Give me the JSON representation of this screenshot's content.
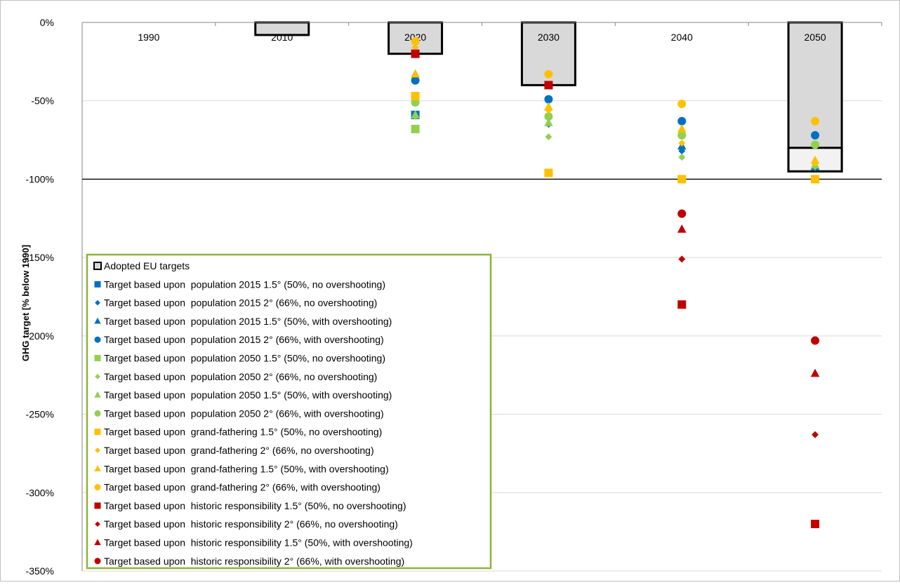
{
  "chart_data": {
    "type": "scatter",
    "ylabel": "GHG target [% below 1990]",
    "y_ticks": [
      "0%",
      "-50%",
      "-100%",
      "-150%",
      "-200%",
      "-250%",
      "-300%",
      "-350%"
    ],
    "ylim": [
      -350,
      0
    ],
    "categories": [
      "1990",
      "2010",
      "2020",
      "2030",
      "2040",
      "2050"
    ],
    "grid": true,
    "legend_position": "bottom-left",
    "adopted_eu_targets": {
      "name": "Adopted EU targets",
      "color": "#d9d9d9",
      "bars": [
        {
          "category": "2010",
          "value": -8
        },
        {
          "category": "2020",
          "value": -20
        },
        {
          "category": "2030",
          "value": -40
        },
        {
          "category": "2050",
          "value": -95,
          "inner_value": -80
        }
      ]
    },
    "series": [
      {
        "name": "Target based upon  population 2015 1.5° (50%, no overshooting)",
        "color": "#0070c0",
        "marker": "square",
        "points": [
          [
            "2020",
            -59
          ]
        ]
      },
      {
        "name": "Target based upon  population 2015 2° (66%, no overshooting)",
        "color": "#0070c0",
        "marker": "diamond",
        "points": [
          [
            "2020",
            -35
          ],
          [
            "2030",
            -65
          ],
          [
            "2040",
            -82
          ],
          [
            "2050",
            -93
          ]
        ]
      },
      {
        "name": "Target based upon  population 2015 1.5° (50%, with overshooting)",
        "color": "#0070c0",
        "marker": "triangle",
        "points": [
          [
            "2020",
            -33
          ],
          [
            "2030",
            -54
          ],
          [
            "2040",
            -79
          ],
          [
            "2050",
            -92
          ]
        ]
      },
      {
        "name": "Target based upon  population 2015 2° (66%, with overshooting)",
        "color": "#0070c0",
        "marker": "circle",
        "points": [
          [
            "2020",
            -37
          ],
          [
            "2030",
            -49
          ],
          [
            "2040",
            -63
          ],
          [
            "2050",
            -72
          ]
        ]
      },
      {
        "name": "Target based upon  population 2050 1.5° (50%, no overshooting)",
        "color": "#92d050",
        "marker": "square",
        "points": [
          [
            "2020",
            -68
          ]
        ]
      },
      {
        "name": "Target based upon  population 2050 2° (66%, no overshooting)",
        "color": "#92d050",
        "marker": "diamond",
        "points": [
          [
            "2020",
            -60
          ],
          [
            "2030",
            -73
          ],
          [
            "2040",
            -86
          ],
          [
            "2050",
            -92
          ]
        ]
      },
      {
        "name": "Target based upon  population 2050 1.5° (50%, with overshooting)",
        "color": "#92d050",
        "marker": "triangle",
        "points": [
          [
            "2020",
            -59
          ],
          [
            "2030",
            -64
          ],
          [
            "2040",
            -70
          ],
          [
            "2050",
            -91
          ]
        ]
      },
      {
        "name": "Target based upon  population 2050 2° (66%, with overshooting)",
        "color": "#92d050",
        "marker": "circle",
        "points": [
          [
            "2020",
            -51
          ],
          [
            "2030",
            -60
          ],
          [
            "2040",
            -72
          ],
          [
            "2050",
            -78
          ]
        ]
      },
      {
        "name": "Target based upon  grand-fathering 1.5° (50%, no overshooting)",
        "color": "#ffc000",
        "marker": "square",
        "points": [
          [
            "2020",
            -47
          ],
          [
            "2030",
            -96
          ],
          [
            "2040",
            -100
          ],
          [
            "2050",
            -100
          ]
        ]
      },
      {
        "name": "Target based upon  grand-fathering 2° (66%, no overshooting)",
        "color": "#ffc000",
        "marker": "diamond",
        "points": [
          [
            "2020",
            -16
          ],
          [
            "2030",
            -56
          ],
          [
            "2040",
            -77
          ],
          [
            "2050",
            -90
          ]
        ]
      },
      {
        "name": "Target based upon  grand-fathering 1.5° (50%, with overshooting)",
        "color": "#ffc000",
        "marker": "triangle",
        "points": [
          [
            "2020",
            -33
          ],
          [
            "2030",
            -54
          ],
          [
            "2040",
            -68
          ],
          [
            "2050",
            -88
          ]
        ]
      },
      {
        "name": "Target based upon  grand-fathering 2° (66%, with overshooting)",
        "color": "#ffc000",
        "marker": "circle",
        "points": [
          [
            "2020",
            -12
          ],
          [
            "2030",
            -33
          ],
          [
            "2040",
            -52
          ],
          [
            "2050",
            -63
          ]
        ]
      },
      {
        "name": "Target based upon  historic responsibility 1.5° (50%, no overshooting)",
        "color": "#c00000",
        "marker": "square",
        "points": [
          [
            "2020",
            -20
          ],
          [
            "2030",
            -40
          ],
          [
            "2040",
            -180
          ],
          [
            "2050",
            -320
          ]
        ]
      },
      {
        "name": "Target based upon  historic responsibility 2° (66%, no overshooting)",
        "color": "#c00000",
        "marker": "diamond",
        "points": [
          [
            "2040",
            -151
          ],
          [
            "2050",
            -263
          ]
        ]
      },
      {
        "name": "Target based upon  historic responsibility 1.5° (50%, with overshooting)",
        "color": "#c00000",
        "marker": "triangle",
        "points": [
          [
            "2040",
            -132
          ],
          [
            "2050",
            -224
          ]
        ]
      },
      {
        "name": "Target based upon  historic responsibility 2° (66%, with overshooting)",
        "color": "#c00000",
        "marker": "circle",
        "points": [
          [
            "2040",
            -122
          ],
          [
            "2050",
            -203
          ]
        ]
      }
    ]
  }
}
